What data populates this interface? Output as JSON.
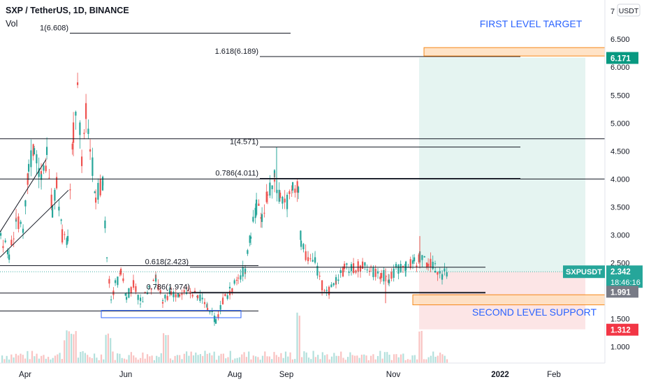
{
  "header": {
    "title": "SXP / TetherUS, 1D, BINANCE",
    "volume_label": "Vol"
  },
  "colors": {
    "up": "#26a69a",
    "down": "#ef5350",
    "grid": "#e0e3eb",
    "accent": "#2962ff",
    "ann_text": "#2962ff"
  },
  "chart_data": {
    "type": "candlestick",
    "symbol": "SXPUSDT",
    "ylim": [
      0.7,
      7.0
    ],
    "y_ticks": [
      "1.000",
      "1.500",
      "2.000",
      "2.500",
      "3.000",
      "3.500",
      "4.000",
      "4.500",
      "5.000",
      "5.500",
      "6.000",
      "6.500",
      "7"
    ],
    "y_unit": "USDT",
    "x_ticks": [
      "Apr",
      "Jun",
      "Aug",
      "Sep",
      "Nov",
      "2022",
      "Feb"
    ],
    "price_tags": [
      {
        "label": "6.171",
        "value": 6.171,
        "color": "#089981"
      },
      {
        "symbol": "SXPUSDT",
        "label": "2.342",
        "countdown": "18:46:16",
        "value": 2.342,
        "color": "#26a69a"
      },
      {
        "label": "1.991",
        "value": 1.991,
        "color": "#787b86"
      },
      {
        "label": "1.312",
        "value": 1.312,
        "color": "#f23645"
      }
    ],
    "fib_levels": [
      {
        "label": "1(6.608)",
        "value": 6.608
      },
      {
        "label": "1.618(6.189)",
        "value": 6.189
      },
      {
        "label": "1(4.571)",
        "value": 4.571
      },
      {
        "label": "0.786(4.011)",
        "value": 4.011
      },
      {
        "label": "0.618(2.423)",
        "value": 2.423
      },
      {
        "label": "0.786(1.974)",
        "value": 1.974
      }
    ],
    "horizontal_lines": [
      4.72,
      4.0,
      2.45,
      1.96,
      1.64
    ],
    "annotations": [
      "FIRST LEVEL TARGET",
      "SECOND LEVEL SUPPORT"
    ],
    "position": {
      "entry": 2.342,
      "target": 6.171,
      "stop": 1.312
    }
  }
}
